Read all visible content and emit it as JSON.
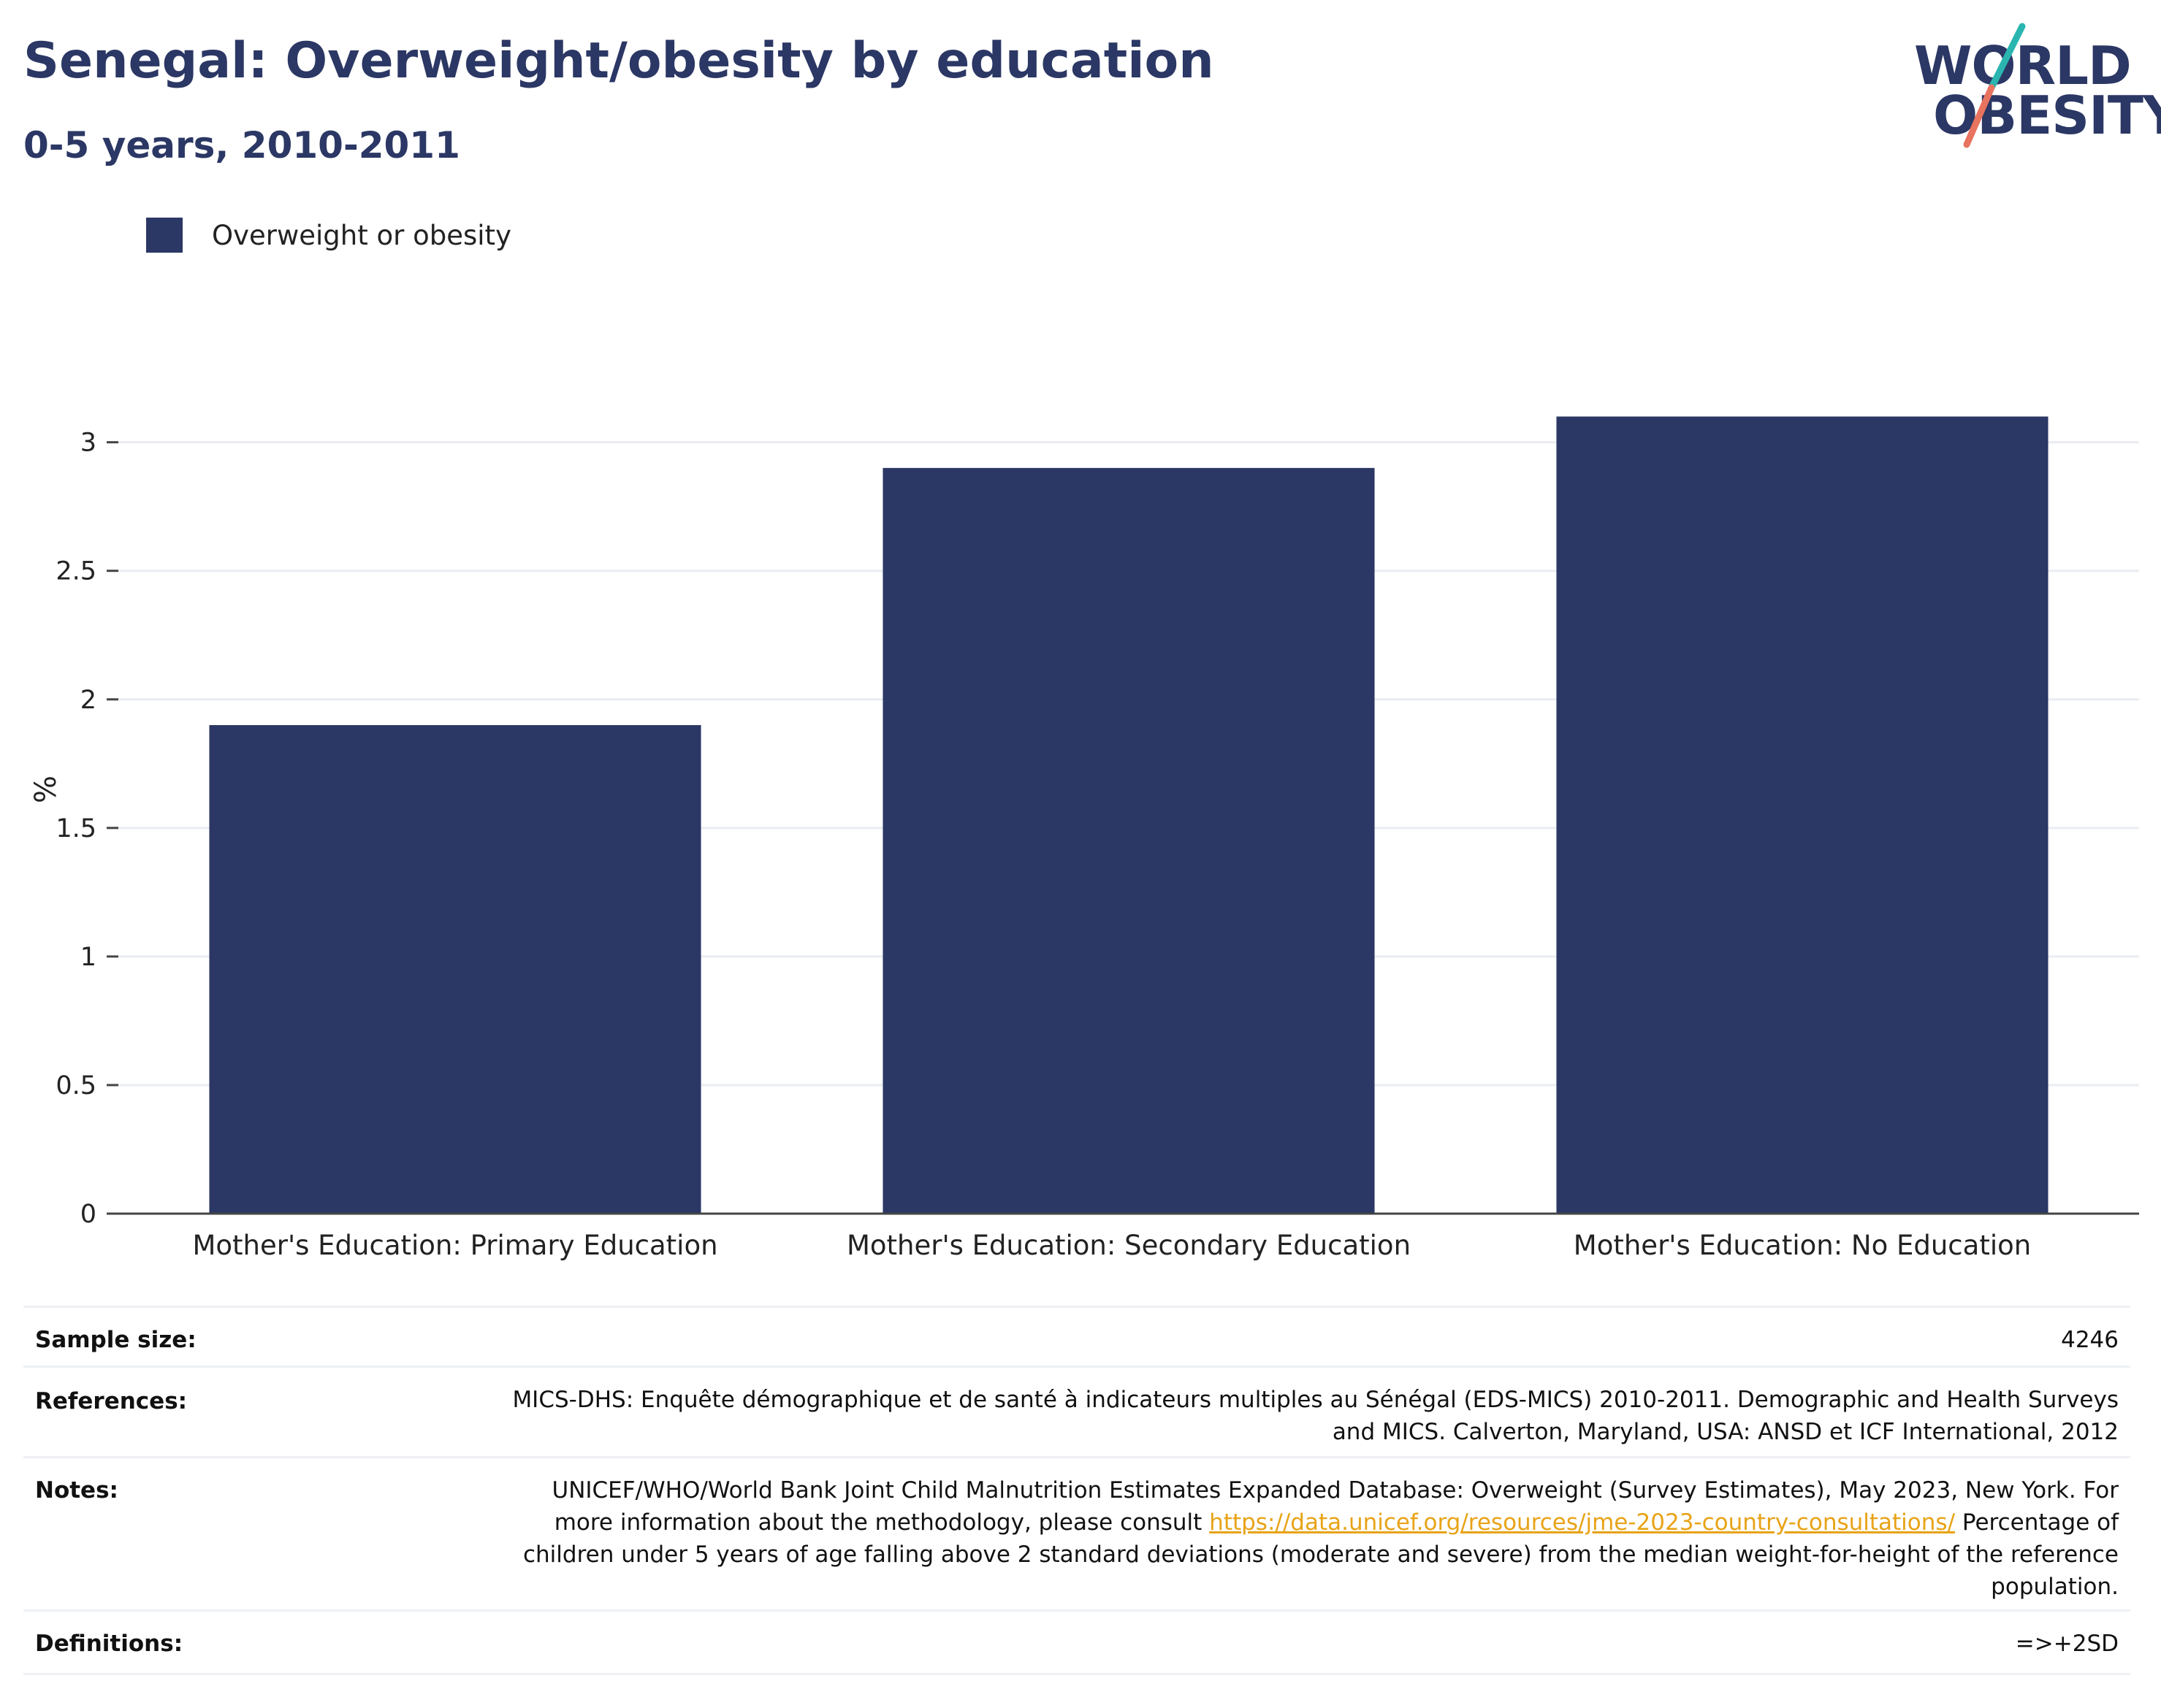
{
  "header": {
    "title": "Senegal: Overweight/obesity by education",
    "subtitle": "0-5 years, 2010-2011"
  },
  "logo": {
    "line1": "WORLD",
    "line2": "OBESITY",
    "accent_teal": "#2ab5b0",
    "accent_coral": "#e8735f"
  },
  "legend": {
    "label": "Overweight or obesity",
    "color": "#2b3764"
  },
  "chart_data": {
    "type": "bar",
    "categories": [
      "Mother's Education: Primary Education",
      "Mother's Education: Secondary Education",
      "Mother's Education: No Education"
    ],
    "series": [
      {
        "name": "Overweight or obesity",
        "values": [
          1.9,
          2.9,
          3.1
        ],
        "color": "#2b3764"
      }
    ],
    "ylabel": "%",
    "ylim": [
      0,
      3.3
    ],
    "yticks": [
      0,
      0.5,
      1,
      1.5,
      2,
      2.5,
      3
    ],
    "ytick_labels": [
      "0",
      "0.5",
      "1",
      "1.5",
      "2",
      "2.5",
      "3"
    ],
    "grid": true
  },
  "meta": {
    "sample_size": {
      "label": "Sample size:",
      "value": "4246"
    },
    "references": {
      "label": "References:",
      "value": "MICS-DHS: Enquête démographique et de santé à indicateurs multiples au Sénégal (EDS-MICS) 2010-2011. Demographic and Health Surveys and MICS. Calverton, Maryland, USA: ANSD et ICF International, 2012"
    },
    "notes": {
      "label": "Notes:",
      "value_before_link": "UNICEF/WHO/World Bank Joint Child Malnutrition Estimates Expanded Database: Overweight (Survey Estimates), May 2023, New York. For more information about the methodology, please consult ",
      "link_text": "https://data.unicef.org/resources/jme-2023-country-consultations/",
      "value_after_link": " Percentage of children under 5 years of age falling above 2 standard deviations (moderate and severe) from the median weight-for-height of the reference population."
    },
    "definitions": {
      "label": "Definitions:",
      "value": "=>+2SD"
    }
  }
}
